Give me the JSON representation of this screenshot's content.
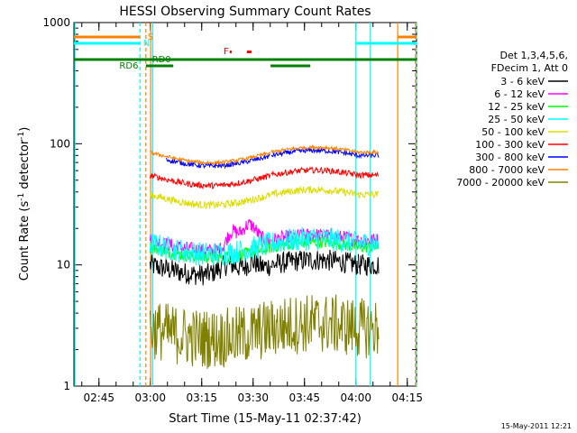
{
  "chart_data": {
    "type": "line",
    "title": "HESSI Observing Summary Count Rates",
    "xlabel": "Start Time (15-May-11 02:37:42)",
    "ylabel_main": "Count Rate (s",
    "ylabel_sup1": "-1",
    "ylabel_mid": " detector",
    "ylabel_sup2": "-1",
    "ylabel_end": ")",
    "y_scale": "log",
    "ylim": [
      1,
      1000
    ],
    "xlim_minutes": [
      0,
      100
    ],
    "x_tick_labels": [
      "02:45",
      "03:00",
      "03:15",
      "03:30",
      "03:45",
      "04:00",
      "04:15"
    ],
    "x_ticks_minutes": [
      7.3,
      22.3,
      37.3,
      52.3,
      67.3,
      82.3,
      97.3
    ],
    "y_tick_labels": [
      "1",
      "10",
      "100",
      "1000"
    ],
    "y_ticks": [
      1,
      10,
      100,
      1000
    ],
    "footer_date": "15-May-2011 12:21",
    "legend_header": [
      "Det 1,3,4,5,6,",
      "FDecim 1, Att 0"
    ],
    "series": [
      {
        "name": "3 - 6 keV",
        "color": "#000000",
        "level": 10,
        "noise": 0.09,
        "segments": [
          [
            22.2,
            57.4
          ],
          [
            57.6,
            83
          ],
          [
            83,
            89
          ]
        ],
        "events": [
          {
            "t": 45,
            "w": 4,
            "amp": 0.2
          },
          {
            "t": 52,
            "w": 2,
            "amp": 0.15
          }
        ]
      },
      {
        "name": "6 - 12 keV",
        "color": "#ff00ff",
        "level": 16,
        "noise": 0.06,
        "segments": [
          [
            22.2,
            57.4
          ],
          [
            57.6,
            83
          ],
          [
            83,
            89
          ]
        ],
        "events": [
          {
            "t": 46,
            "w": 2,
            "amp": 0.35
          },
          {
            "t": 51,
            "w": 3,
            "amp": 0.5
          }
        ]
      },
      {
        "name": "12 - 25 keV",
        "color": "#00ff00",
        "level": 14,
        "noise": 0.05,
        "segments": [
          [
            22.2,
            57.4
          ],
          [
            57.6,
            83
          ],
          [
            83,
            89
          ]
        ],
        "events": []
      },
      {
        "name": "25 - 50 keV",
        "color": "#00ffff",
        "level": 15,
        "noise": 0.1,
        "segments": [
          [
            22.2,
            57.4
          ],
          [
            57.6,
            83
          ],
          [
            83,
            89
          ]
        ],
        "events": []
      },
      {
        "name": "50 - 100 keV",
        "color": "#dddd00",
        "level": 38,
        "noise": 0.03,
        "segments": [
          [
            22.2,
            27
          ],
          [
            27,
            57.4
          ],
          [
            57.6,
            83
          ],
          [
            83,
            89
          ]
        ],
        "events": []
      },
      {
        "name": "100 - 300 keV",
        "color": "#ff0000",
        "level": 55,
        "noise": 0.025,
        "segments": [
          [
            22.2,
            27
          ],
          [
            27,
            57.4
          ],
          [
            57.6,
            83
          ],
          [
            83,
            89
          ]
        ],
        "events": []
      },
      {
        "name": "300 - 800 keV",
        "color": "#0000ff",
        "level": 80,
        "noise": 0.02,
        "segments": [
          [
            27,
            57.4
          ],
          [
            57.6,
            83
          ],
          [
            83,
            89
          ]
        ],
        "events": []
      },
      {
        "name": "800 - 7000 keV",
        "color": "#ff8000",
        "level": 85,
        "noise": 0.015,
        "segments": [
          [
            22.2,
            57.4
          ],
          [
            57.6,
            83
          ],
          [
            83,
            89
          ]
        ],
        "events": []
      },
      {
        "name": "7000 - 20000 keV",
        "color": "#808000",
        "level": 3,
        "noise": 0.25,
        "segments": [
          [
            22.2,
            57.4
          ],
          [
            57.6,
            83
          ],
          [
            83,
            89
          ]
        ],
        "events": []
      }
    ],
    "annotations": {
      "S": {
        "label": "S",
        "color": "#ff8000"
      },
      "N": {
        "label": "N",
        "color": "#00ffff"
      },
      "RD0": {
        "label": "RD0",
        "color": "#008000"
      },
      "RD6": {
        "label": "RD6",
        "color": "#008000"
      },
      "F": {
        "label": "F",
        "color": "#ff0000"
      }
    }
  }
}
